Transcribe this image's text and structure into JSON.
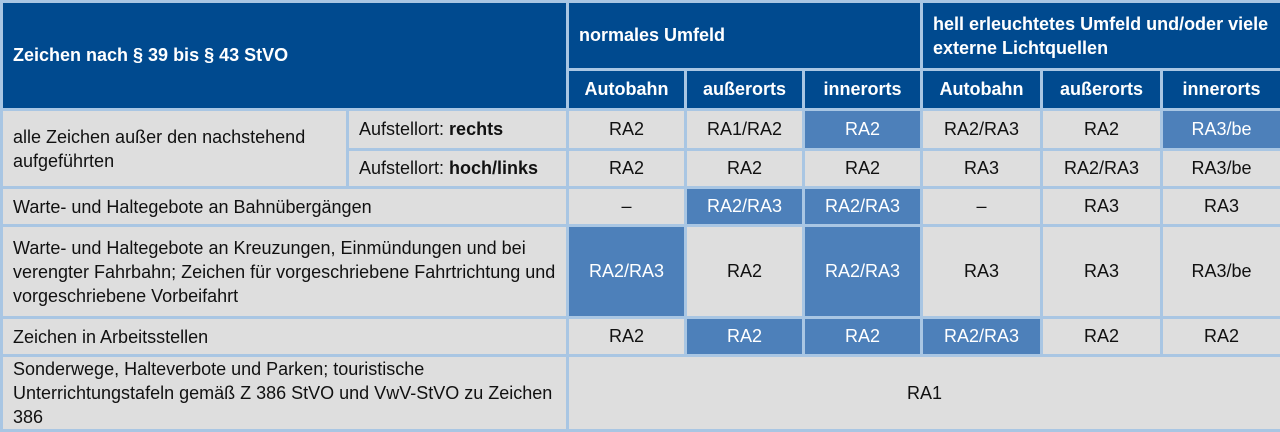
{
  "header": {
    "main": "Zeichen nach § 39 bis § 43 StVO",
    "group1": "normales Umfeld",
    "group2": "hell erleuchtetes Umfeld und/oder viele externe Lichtquellen",
    "sub": [
      "Autobahn",
      "außerorts",
      "innerorts",
      "Autobahn",
      "außerorts",
      "innerorts"
    ]
  },
  "colors": {
    "header": "#004a8f",
    "cell": "#dedede",
    "highlight": "#4d80ba",
    "border": "#a9c6e3"
  },
  "rows": [
    {
      "label": "alle Zeichen außer den nachstehend aufgeführten",
      "sub_prefix": "Aufstellort: ",
      "sub_bold": "rechts",
      "cells": [
        "RA2",
        "RA1/RA2",
        "RA2",
        "RA2/RA3",
        "RA2",
        "RA3/be"
      ],
      "highlight": [
        false,
        false,
        true,
        false,
        false,
        true
      ]
    },
    {
      "sub_prefix": "Aufstellort: ",
      "sub_bold": "hoch/links",
      "cells": [
        "RA2",
        "RA2",
        "RA2",
        "RA3",
        "RA2/RA3",
        "RA3/be"
      ],
      "highlight": [
        false,
        false,
        false,
        false,
        false,
        false
      ]
    },
    {
      "label": "Warte- und Haltegebote an Bahnübergängen",
      "cells": [
        "–",
        "RA2/RA3",
        "RA2/RA3",
        "–",
        "RA3",
        "RA3"
      ],
      "highlight": [
        false,
        true,
        true,
        false,
        false,
        false
      ]
    },
    {
      "label": "Warte- und Haltegebote an Kreuzungen, Einmündungen und bei verengter Fahrbahn; Zeichen für vorgeschriebene Fahrtrichtung und vorgeschriebene Vorbeifahrt",
      "cells": [
        "RA2/RA3",
        "RA2",
        "RA2/RA3",
        "RA3",
        "RA3",
        "RA3/be"
      ],
      "highlight": [
        true,
        false,
        true,
        false,
        false,
        false
      ]
    },
    {
      "label": "Zeichen in Arbeitsstellen",
      "cells": [
        "RA2",
        "RA2",
        "RA2",
        "RA2/RA3",
        "RA2",
        "RA2"
      ],
      "highlight": [
        false,
        true,
        true,
        true,
        false,
        false
      ]
    },
    {
      "label": "Sonderwege, Halteverbote und Parken; touristische Unterrichtungstafeln gemäß Z 386 StVO und VwV-StVO zu Zeichen 386",
      "cells": [
        "RA1"
      ]
    }
  ]
}
